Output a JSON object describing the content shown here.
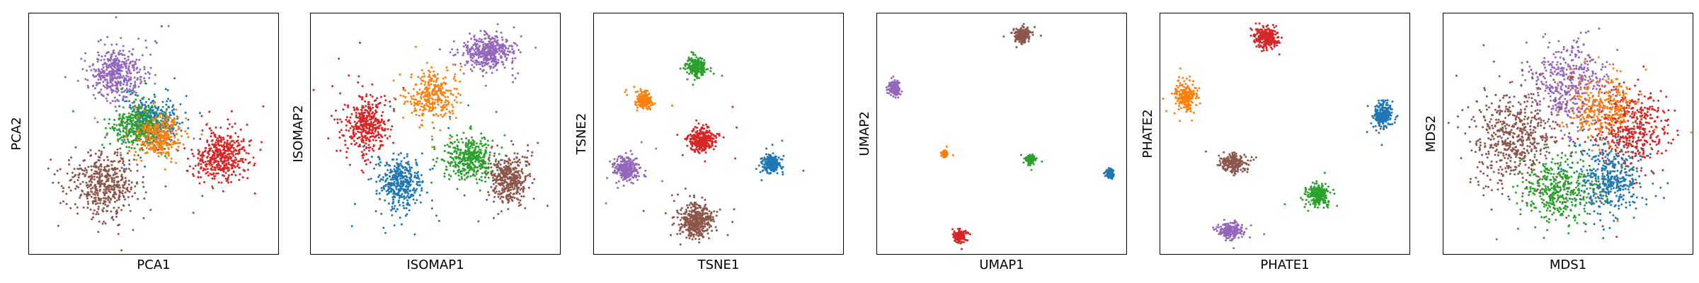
{
  "colors": {
    "blue": "#1f77b4",
    "orange": "#ff7f0e",
    "green": "#2ca02c",
    "red": "#d62728",
    "purple": "#9467bd",
    "brown": "#8c564b"
  },
  "chart_data": [
    {
      "type": "scatter",
      "xlabel": "PCA1",
      "ylabel": "PCA2",
      "grid": false,
      "ticks": "none",
      "clusters": [
        {
          "color": "purple",
          "cx": 0.35,
          "cy": 0.75,
          "sx": 0.055,
          "sy": 0.055,
          "n": 420
        },
        {
          "color": "blue",
          "cx": 0.49,
          "cy": 0.56,
          "sx": 0.055,
          "sy": 0.05,
          "n": 380
        },
        {
          "color": "green",
          "cx": 0.44,
          "cy": 0.54,
          "sx": 0.05,
          "sy": 0.045,
          "n": 380
        },
        {
          "color": "orange",
          "cx": 0.52,
          "cy": 0.49,
          "sx": 0.045,
          "sy": 0.045,
          "n": 320
        },
        {
          "color": "red",
          "cx": 0.77,
          "cy": 0.41,
          "sx": 0.055,
          "sy": 0.05,
          "n": 440
        },
        {
          "color": "brown",
          "cx": 0.3,
          "cy": 0.29,
          "sx": 0.065,
          "sy": 0.065,
          "n": 480
        }
      ]
    },
    {
      "type": "scatter",
      "xlabel": "ISOMAP1",
      "ylabel": "ISOMAP2",
      "grid": false,
      "ticks": "none",
      "clusters": [
        {
          "color": "red",
          "cx": 0.22,
          "cy": 0.54,
          "sx": 0.045,
          "sy": 0.06,
          "n": 420
        },
        {
          "color": "orange",
          "cx": 0.49,
          "cy": 0.66,
          "sx": 0.045,
          "sy": 0.05,
          "n": 320
        },
        {
          "color": "purple",
          "cx": 0.71,
          "cy": 0.84,
          "sx": 0.05,
          "sy": 0.035,
          "n": 420
        },
        {
          "color": "blue",
          "cx": 0.36,
          "cy": 0.3,
          "sx": 0.045,
          "sy": 0.055,
          "n": 400
        },
        {
          "color": "green",
          "cx": 0.63,
          "cy": 0.4,
          "sx": 0.045,
          "sy": 0.045,
          "n": 380
        },
        {
          "color": "brown",
          "cx": 0.79,
          "cy": 0.32,
          "sx": 0.04,
          "sy": 0.05,
          "n": 400
        }
      ]
    },
    {
      "type": "scatter",
      "xlabel": "TSNE1",
      "ylabel": "TSNE2",
      "grid": false,
      "ticks": "none",
      "clusters": [
        {
          "color": "green",
          "cx": 0.41,
          "cy": 0.78,
          "sx": 0.018,
          "sy": 0.018,
          "n": 260
        },
        {
          "color": "orange",
          "cx": 0.2,
          "cy": 0.64,
          "sx": 0.016,
          "sy": 0.016,
          "n": 200
        },
        {
          "color": "red",
          "cx": 0.43,
          "cy": 0.48,
          "sx": 0.025,
          "sy": 0.025,
          "n": 320
        },
        {
          "color": "blue",
          "cx": 0.71,
          "cy": 0.38,
          "sx": 0.018,
          "sy": 0.018,
          "n": 240
        },
        {
          "color": "purple",
          "cx": 0.13,
          "cy": 0.36,
          "sx": 0.025,
          "sy": 0.025,
          "n": 300
        },
        {
          "color": "brown",
          "cx": 0.41,
          "cy": 0.14,
          "sx": 0.035,
          "sy": 0.035,
          "n": 420
        }
      ]
    },
    {
      "type": "scatter",
      "xlabel": "UMAP1",
      "ylabel": "UMAP2",
      "grid": false,
      "ticks": "none",
      "clusters": [
        {
          "color": "brown",
          "cx": 0.58,
          "cy": 0.91,
          "sx": 0.015,
          "sy": 0.015,
          "n": 220
        },
        {
          "color": "purple",
          "cx": 0.07,
          "cy": 0.69,
          "sx": 0.012,
          "sy": 0.014,
          "n": 180
        },
        {
          "color": "orange",
          "cx": 0.27,
          "cy": 0.42,
          "sx": 0.007,
          "sy": 0.007,
          "n": 80
        },
        {
          "color": "green",
          "cx": 0.61,
          "cy": 0.4,
          "sx": 0.009,
          "sy": 0.009,
          "n": 120
        },
        {
          "color": "blue",
          "cx": 0.93,
          "cy": 0.34,
          "sx": 0.008,
          "sy": 0.009,
          "n": 100
        },
        {
          "color": "red",
          "cx": 0.33,
          "cy": 0.08,
          "sx": 0.012,
          "sy": 0.012,
          "n": 160
        }
      ]
    },
    {
      "type": "scatter",
      "xlabel": "PHATE1",
      "ylabel": "PHATE2",
      "grid": false,
      "ticks": "none",
      "clusters": [
        {
          "color": "red",
          "cx": 0.42,
          "cy": 0.9,
          "sx": 0.025,
          "sy": 0.02,
          "n": 260
        },
        {
          "color": "orange",
          "cx": 0.1,
          "cy": 0.66,
          "sx": 0.02,
          "sy": 0.028,
          "n": 220
        },
        {
          "color": "blue",
          "cx": 0.89,
          "cy": 0.58,
          "sx": 0.018,
          "sy": 0.025,
          "n": 240
        },
        {
          "color": "brown",
          "cx": 0.29,
          "cy": 0.38,
          "sx": 0.025,
          "sy": 0.018,
          "n": 220
        },
        {
          "color": "green",
          "cx": 0.63,
          "cy": 0.25,
          "sx": 0.022,
          "sy": 0.022,
          "n": 240
        },
        {
          "color": "purple",
          "cx": 0.28,
          "cy": 0.1,
          "sx": 0.025,
          "sy": 0.016,
          "n": 220
        }
      ]
    },
    {
      "type": "scatter",
      "xlabel": "MDS1",
      "ylabel": "MDS2",
      "grid": false,
      "ticks": "none",
      "clusters": [
        {
          "color": "purple",
          "cx": 0.5,
          "cy": 0.71,
          "sx": 0.075,
          "sy": 0.085,
          "n": 460
        },
        {
          "color": "red",
          "cx": 0.75,
          "cy": 0.52,
          "sx": 0.07,
          "sy": 0.08,
          "n": 460
        },
        {
          "color": "blue",
          "cx": 0.66,
          "cy": 0.32,
          "sx": 0.07,
          "sy": 0.07,
          "n": 420
        },
        {
          "color": "green",
          "cx": 0.46,
          "cy": 0.27,
          "sx": 0.075,
          "sy": 0.07,
          "n": 420
        },
        {
          "color": "orange",
          "cx": 0.64,
          "cy": 0.62,
          "sx": 0.065,
          "sy": 0.065,
          "n": 300
        },
        {
          "color": "brown",
          "cx": 0.28,
          "cy": 0.48,
          "sx": 0.085,
          "sy": 0.1,
          "n": 560
        }
      ]
    }
  ]
}
